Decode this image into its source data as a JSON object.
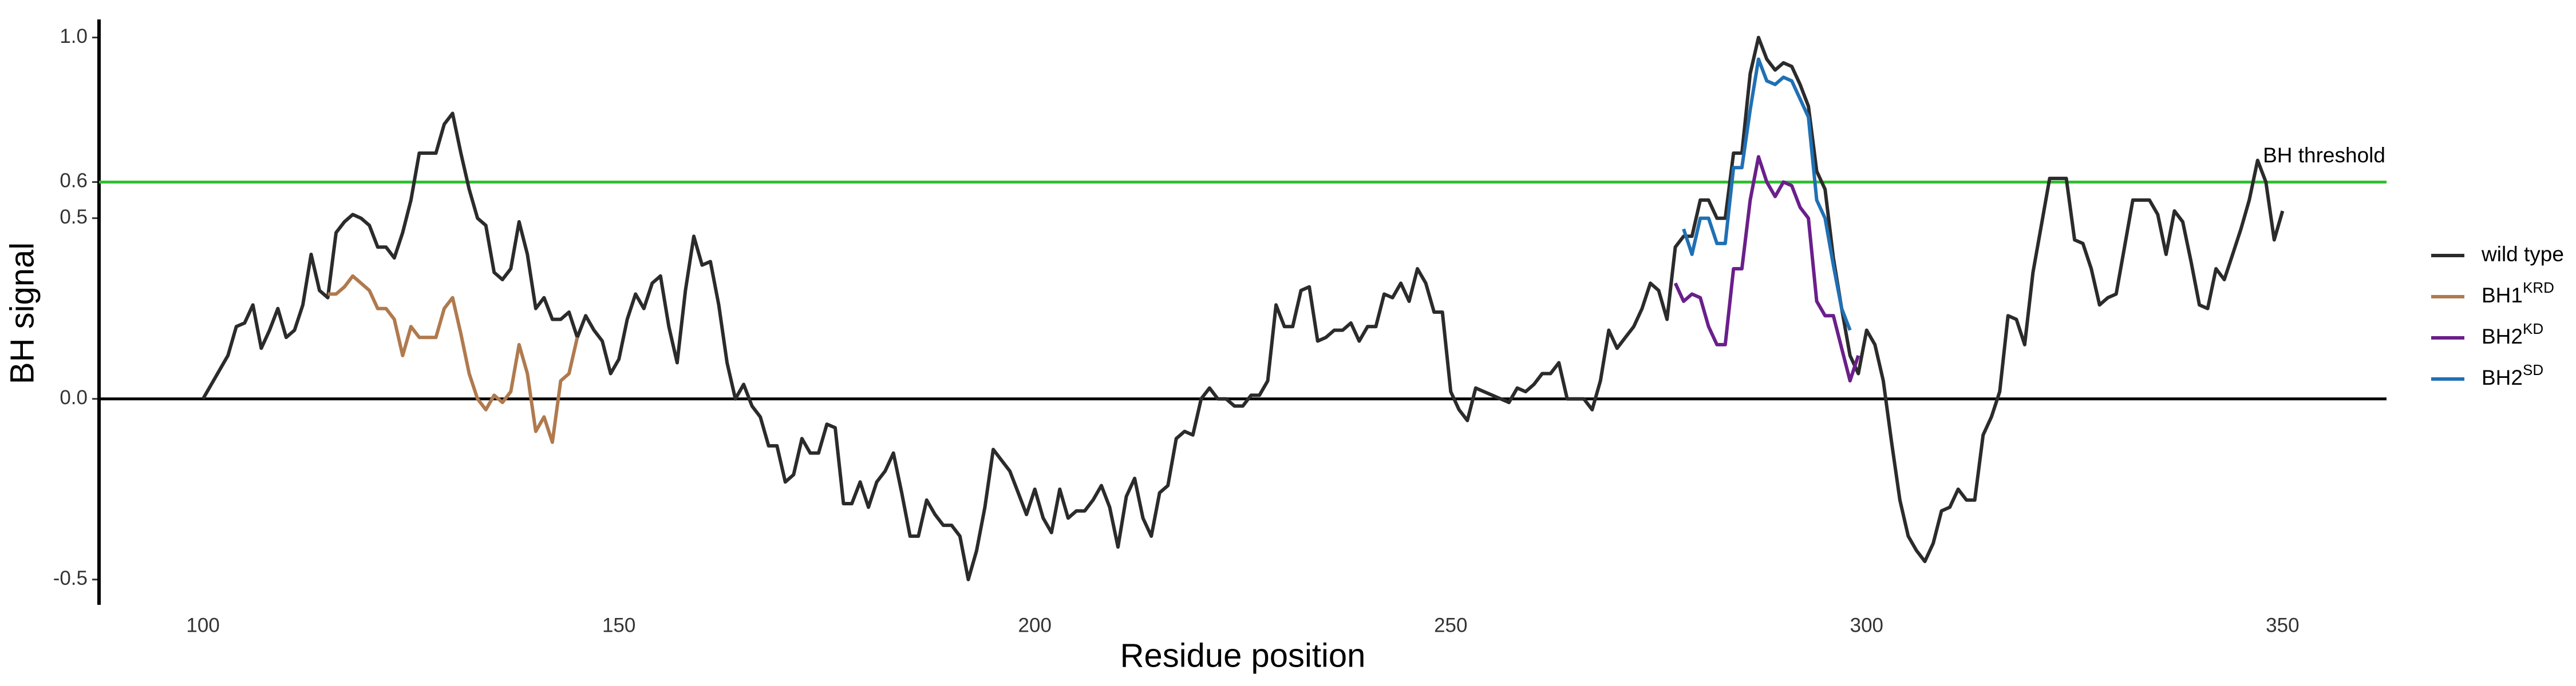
{
  "chart_data": {
    "type": "line",
    "xlabel": "Residue position",
    "ylabel": "BH signal",
    "xlim": [
      87.5,
      362.5
    ],
    "ylim": [
      -0.57,
      1.05
    ],
    "xticks": [
      100,
      150,
      200,
      250,
      300,
      350
    ],
    "yticks": [
      -0.5,
      {
        "value": 0,
        "label": "0.0"
      },
      0.5,
      0.6,
      {
        "value": 1,
        "label": "1.0"
      }
    ],
    "reference_lines": [
      {
        "value": 0,
        "color": "#000000"
      },
      {
        "value": 0.6,
        "color": "#2ec02e",
        "label": "BH threshold"
      }
    ],
    "legend": "right",
    "series": [
      {
        "name": "wild type",
        "color": "#2b2b2b",
        "x": [
          100,
          101,
          102,
          103,
          104,
          105,
          106,
          107,
          108,
          109,
          110,
          111,
          112,
          113,
          114,
          115,
          116,
          117,
          118,
          119,
          120,
          121,
          122,
          123,
          124,
          125,
          126,
          127,
          128,
          129,
          130,
          131,
          132,
          133,
          134,
          135,
          136,
          137,
          138,
          139,
          140,
          141,
          142,
          143,
          144,
          145,
          146,
          147,
          148,
          149,
          150,
          151,
          152,
          153,
          154,
          155,
          156,
          157,
          158,
          159,
          160,
          161,
          162,
          163,
          164,
          165,
          166,
          167,
          168,
          169,
          170,
          171,
          172,
          173,
          174,
          175,
          176,
          177,
          178,
          179,
          180,
          181,
          182,
          183,
          184,
          185,
          186,
          187,
          188,
          189,
          190,
          191,
          192,
          193,
          194,
          195,
          196,
          197,
          198,
          199,
          200,
          201,
          202,
          203,
          204,
          205,
          206,
          207,
          208,
          209,
          210,
          211,
          212,
          213,
          214,
          215,
          216,
          217,
          218,
          219,
          220,
          221,
          222,
          223,
          224,
          225,
          226,
          227,
          228,
          229,
          230,
          231,
          232,
          233,
          234,
          235,
          236,
          237,
          238,
          239,
          240,
          241,
          242,
          243,
          244,
          245,
          246,
          247,
          248,
          249,
          250,
          251,
          252,
          253,
          254,
          255,
          256,
          257,
          258,
          259,
          260,
          261,
          262,
          263,
          264,
          265,
          266,
          267,
          268,
          269,
          270,
          271,
          272,
          273,
          274,
          275,
          276,
          277,
          278,
          279,
          280,
          281,
          282,
          283,
          284,
          285,
          286,
          287,
          288,
          289,
          290,
          291,
          292,
          293,
          294,
          295,
          296,
          297,
          298,
          299,
          300,
          301,
          302,
          303,
          304,
          305,
          306,
          307,
          308,
          309,
          310,
          311,
          312,
          313,
          314,
          315,
          316,
          317,
          318,
          319,
          320,
          321,
          322,
          323,
          324,
          325,
          326,
          327,
          328,
          329,
          330,
          331,
          332,
          333,
          334,
          335,
          336,
          337,
          338,
          339,
          340,
          341,
          342,
          343,
          344,
          345,
          346,
          347,
          348,
          349,
          350
        ],
        "values": [
          0,
          0.04,
          0.08,
          0.12,
          0.2,
          0.21,
          0.26,
          0.14,
          0.19,
          0.25,
          0.17,
          0.19,
          0.26,
          0.4,
          0.3,
          0.28,
          0.46,
          0.49,
          0.51,
          0.5,
          0.48,
          0.42,
          0.42,
          0.39,
          0.46,
          0.55,
          0.68,
          0.68,
          0.68,
          0.76,
          0.79,
          0.68,
          0.58,
          0.5,
          0.48,
          0.35,
          0.33,
          0.36,
          0.49,
          0.4,
          0.25,
          0.28,
          0.22,
          0.22,
          0.24,
          0.17,
          0.23,
          0.19,
          0.16,
          0.07,
          0.11,
          0.22,
          0.29,
          0.25,
          0.32,
          0.34,
          0.2,
          0.1,
          0.3,
          0.45,
          0.37,
          0.38,
          0.26,
          0.1,
          0,
          0.04,
          -0.02,
          -0.05,
          -0.13,
          -0.13,
          -0.23,
          -0.21,
          -0.11,
          -0.15,
          -0.15,
          -0.07,
          -0.08,
          -0.29,
          -0.29,
          -0.23,
          -0.3,
          -0.23,
          -0.2,
          -0.15,
          -0.26,
          -0.38,
          -0.38,
          -0.28,
          -0.32,
          -0.35,
          -0.35,
          -0.38,
          -0.5,
          -0.42,
          -0.3,
          -0.14,
          -0.17,
          -0.2,
          -0.26,
          -0.32,
          -0.25,
          -0.33,
          -0.37,
          -0.25,
          -0.33,
          -0.31,
          -0.31,
          -0.28,
          -0.24,
          -0.3,
          -0.41,
          -0.27,
          -0.22,
          -0.33,
          -0.38,
          -0.26,
          -0.24,
          -0.11,
          -0.09,
          -0.1,
          0,
          0.03,
          0,
          0,
          -0.02,
          -0.02,
          0.01,
          0.01,
          0.05,
          0.26,
          0.2,
          0.2,
          0.3,
          0.31,
          0.16,
          0.17,
          0.19,
          0.19,
          0.21,
          0.16,
          0.2,
          0.2,
          0.29,
          0.28,
          0.32,
          0.27,
          0.36,
          0.32,
          0.24,
          0.24,
          0.02,
          -0.03,
          -0.06,
          0.03,
          0.02,
          0.01,
          0,
          -0.01,
          0.03,
          0.02,
          0.04,
          0.07,
          0.07,
          0.1,
          0,
          0,
          0,
          -0.03,
          0.05,
          0.19,
          0.14,
          0.17,
          0.2,
          0.25,
          0.32,
          0.3,
          0.22,
          0.42,
          0.45,
          0.45,
          0.55,
          0.55,
          0.5,
          0.5,
          0.68,
          0.68,
          0.9,
          1.0,
          0.94,
          0.91,
          0.93,
          0.92,
          0.87,
          0.81,
          0.63,
          0.58,
          0.39,
          0.25,
          0.12,
          0.07,
          0.19,
          0.15,
          0.05,
          -0.12,
          -0.28,
          -0.38,
          -0.42,
          -0.45,
          -0.4,
          -0.31,
          -0.3,
          -0.25,
          -0.28,
          -0.28,
          -0.1,
          -0.05,
          0.02,
          0.23,
          0.22,
          0.15,
          0.35,
          0.48,
          0.61,
          0.61,
          0.61,
          0.44,
          0.43,
          0.36,
          0.26,
          0.28,
          0.29,
          0.42,
          0.55,
          0.55,
          0.55,
          0.51,
          0.4,
          0.52,
          0.49,
          0.38,
          0.26,
          0.25,
          0.36,
          0.33,
          0.4,
          0.47,
          0.55,
          0.66,
          0.6,
          0.44,
          0.52
        ]
      },
      {
        "name": "BH1",
        "superscript": "KRD",
        "color": "#b07a4e",
        "x": [
          115,
          116,
          117,
          118,
          119,
          120,
          121,
          122,
          123,
          124,
          125,
          126,
          127,
          128,
          129,
          130,
          131,
          132,
          133,
          134,
          135,
          136,
          137,
          138,
          139,
          140,
          141,
          142,
          143,
          144,
          145
        ],
        "values": [
          0.29,
          0.29,
          0.31,
          0.34,
          0.32,
          0.3,
          0.25,
          0.25,
          0.22,
          0.12,
          0.2,
          0.17,
          0.17,
          0.17,
          0.25,
          0.28,
          0.18,
          0.07,
          0,
          -0.03,
          0.01,
          -0.01,
          0.02,
          0.15,
          0.07,
          -0.09,
          -0.05,
          -0.12,
          0.05,
          0.07,
          0.17
        ]
      },
      {
        "name": "BH2",
        "superscript": "KD",
        "color": "#6a1f8a",
        "x": [
          277,
          278,
          279,
          280,
          281,
          282,
          283,
          284,
          285,
          286,
          287,
          288,
          289,
          290,
          291,
          292,
          293,
          294,
          295,
          296,
          297,
          298,
          299
        ],
        "values": [
          0.32,
          0.27,
          0.29,
          0.28,
          0.2,
          0.15,
          0.15,
          0.36,
          0.36,
          0.55,
          0.67,
          0.6,
          0.56,
          0.6,
          0.59,
          0.53,
          0.5,
          0.27,
          0.23,
          0.23,
          0.14,
          0.05,
          0.12
        ]
      },
      {
        "name": "BH2",
        "superscript": "SD",
        "color": "#2070b4",
        "x": [
          278,
          279,
          280,
          281,
          282,
          283,
          284,
          285,
          286,
          287,
          288,
          289,
          290,
          291,
          292,
          293,
          294,
          295,
          296,
          297,
          298
        ],
        "values": [
          0.47,
          0.4,
          0.5,
          0.5,
          0.43,
          0.43,
          0.64,
          0.64,
          0.8,
          0.94,
          0.88,
          0.87,
          0.89,
          0.88,
          0.83,
          0.78,
          0.55,
          0.5,
          0.37,
          0.25,
          0.19
        ]
      }
    ]
  }
}
